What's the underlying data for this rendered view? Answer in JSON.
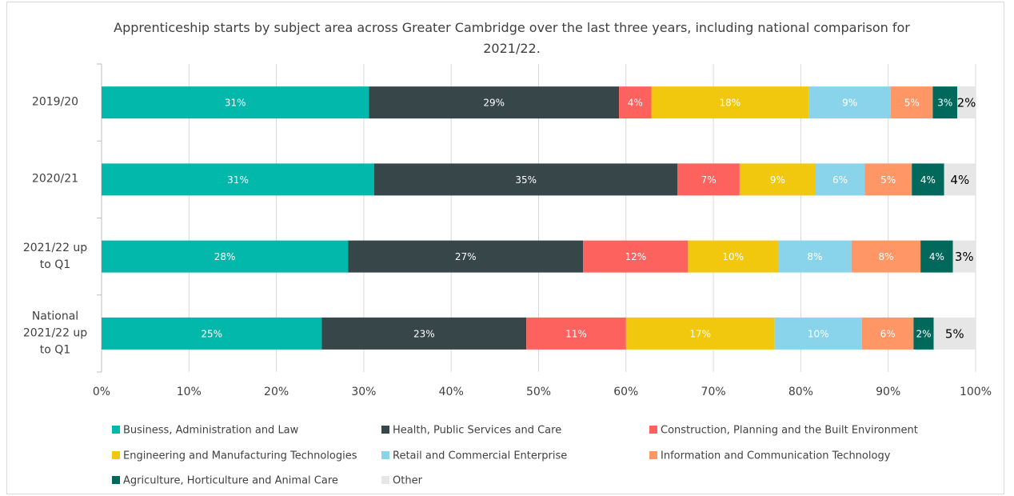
{
  "chart_data": {
    "type": "stacked_bar_horizontal",
    "title": "Apprenticeship starts by subject area across Greater Cambridge over the last three years, including national comparison for 2021/22.",
    "categories": [
      "2019/20",
      "2020/21",
      "2021/22 up to Q1",
      "National 2021/22 up to Q1"
    ],
    "xlim": [
      0,
      100
    ],
    "xticks": [
      {
        "value": 0,
        "label": "0%"
      },
      {
        "value": 10,
        "label": "10%"
      },
      {
        "value": 20,
        "label": "20%"
      },
      {
        "value": 30,
        "label": "30%"
      },
      {
        "value": 40,
        "label": "40%"
      },
      {
        "value": 50,
        "label": "50%"
      },
      {
        "value": 60,
        "label": "60%"
      },
      {
        "value": 70,
        "label": "70%"
      },
      {
        "value": 80,
        "label": "80%"
      },
      {
        "value": 90,
        "label": "90%"
      },
      {
        "value": 100,
        "label": "100%"
      }
    ],
    "grid": true,
    "legend": "bottom",
    "series": [
      {
        "name": "Business, Administration and Law",
        "color": "#01b8aa",
        "values": [
          30.6,
          31.2,
          28.2,
          25.2
        ],
        "value_labels": [
          "31%",
          "31%",
          "28%",
          "25%"
        ]
      },
      {
        "name": "Health, Public Services and Care",
        "color": "#374649",
        "values": [
          28.6,
          34.7,
          26.9,
          23.4
        ],
        "value_labels": [
          "29%",
          "35%",
          "27%",
          "23%"
        ]
      },
      {
        "name": "Construction, Planning and the Built Environment",
        "color": "#fd625e",
        "values": [
          3.7,
          7.1,
          12.0,
          11.4
        ],
        "value_labels": [
          "4%",
          "7%",
          "12%",
          "11%"
        ]
      },
      {
        "name": "Engineering and Manufacturing Technologies",
        "color": "#f2c80f",
        "values": [
          18.0,
          8.7,
          10.3,
          17.0
        ],
        "value_labels": [
          "18%",
          "9%",
          "10%",
          "17%"
        ]
      },
      {
        "name": "Retail and Commercial Enterprise",
        "color": "#8ad4eb",
        "values": [
          9.4,
          5.6,
          8.4,
          10.0
        ],
        "value_labels": [
          "9%",
          "6%",
          "8%",
          "10%"
        ]
      },
      {
        "name": "Information and Communication Technology",
        "color": "#fe9666",
        "values": [
          4.8,
          5.4,
          7.9,
          5.9
        ],
        "value_labels": [
          "5%",
          "5%",
          "8%",
          "6%"
        ]
      },
      {
        "name": "Agriculture, Horticulture and Animal Care",
        "color": "#00695c",
        "values": [
          2.8,
          3.7,
          3.7,
          2.3
        ],
        "value_labels": [
          "3%",
          "4%",
          "4%",
          "2%"
        ]
      },
      {
        "name": "Other",
        "color": "#e6e6e6",
        "values": [
          2.1,
          3.6,
          2.6,
          4.8
        ],
        "value_labels": [
          "2%",
          "4%",
          "3%",
          "5%"
        ]
      }
    ]
  }
}
